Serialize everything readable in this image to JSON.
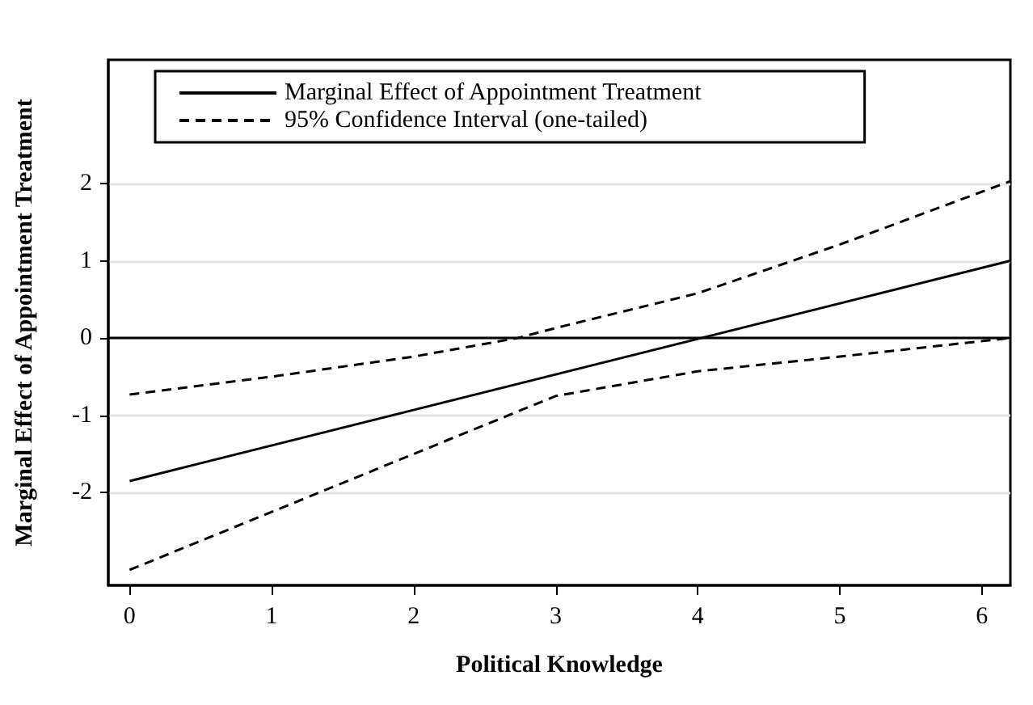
{
  "chart_data": {
    "type": "line",
    "xlabel": "Political Knowledge",
    "ylabel": "Marginal Effect of Appointment Treatment",
    "xlim": [
      -0.15,
      6.2
    ],
    "xticks": [
      0,
      1,
      2,
      3,
      4,
      5,
      6
    ],
    "ylim": [
      -3.2,
      3.6
    ],
    "yticks": [
      -2,
      -1,
      0,
      1,
      2
    ],
    "grid": "y",
    "legend": "top",
    "marker": "none",
    "ref_lines": [
      {
        "axis": "y",
        "value": 0,
        "color": "#000000",
        "line_style": "solid"
      }
    ],
    "series": [
      {
        "name": "Marginal Effect of Appointment Treatment",
        "color": "#000000",
        "line_style": "solid",
        "x": [
          0,
          6.2
        ],
        "values": [
          -1.85,
          1.0
        ]
      },
      {
        "name": "95% Confidence Interval (one-tailed)",
        "color": "#000000",
        "line_style": "dashed",
        "x": [
          0,
          1,
          2,
          2.73,
          3,
          4,
          5,
          6.2
        ],
        "values": [
          -0.73,
          -0.5,
          -0.24,
          0,
          0.13,
          0.58,
          1.21,
          2.03
        ]
      },
      {
        "color": "#000000",
        "line_style": "dashed",
        "x": [
          0,
          1,
          2,
          3,
          4,
          5,
          6.2
        ],
        "values": [
          -3.0,
          -2.25,
          -1.5,
          -0.75,
          -0.43,
          -0.24,
          0.0
        ]
      }
    ]
  }
}
